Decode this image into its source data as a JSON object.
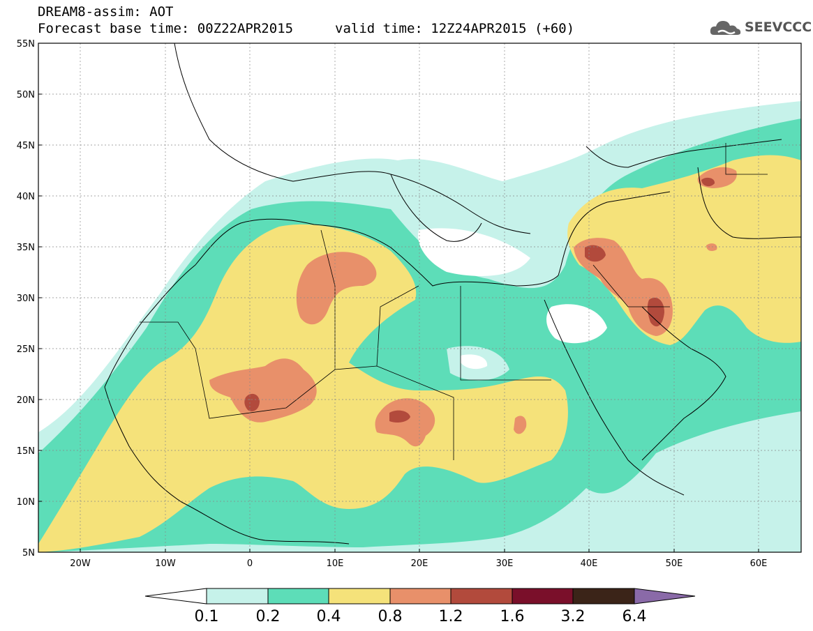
{
  "header": {
    "line1": "DREAM8-assim: AOT",
    "base_time": "Forecast base time: 00Z22APR2015",
    "valid_time": "valid time: 12Z24APR2015 (+60)"
  },
  "logo": {
    "text": "SEEVCCC",
    "icon": "cloud-icon"
  },
  "axes": {
    "lat_labels": [
      "55N",
      "50N",
      "45N",
      "40N",
      "35N",
      "30N",
      "25N",
      "20N",
      "15N",
      "10N",
      "5N"
    ],
    "lon_labels": [
      "20W",
      "10W",
      "0",
      "10E",
      "20E",
      "30E",
      "40E",
      "50E",
      "60E"
    ],
    "lat_range": [
      5,
      55
    ],
    "lon_range": [
      -25,
      65
    ]
  },
  "colorbar": {
    "labels": [
      "0.1",
      "0.2",
      "0.4",
      "0.8",
      "1.2",
      "1.6",
      "3.2",
      "6.4"
    ],
    "colors": [
      "#c6f2ea",
      "#5dddb8",
      "#f5e27a",
      "#e8906a",
      "#b24a3c",
      "#7a0f2a",
      "#3b2418",
      "#8a6aa8"
    ]
  }
}
